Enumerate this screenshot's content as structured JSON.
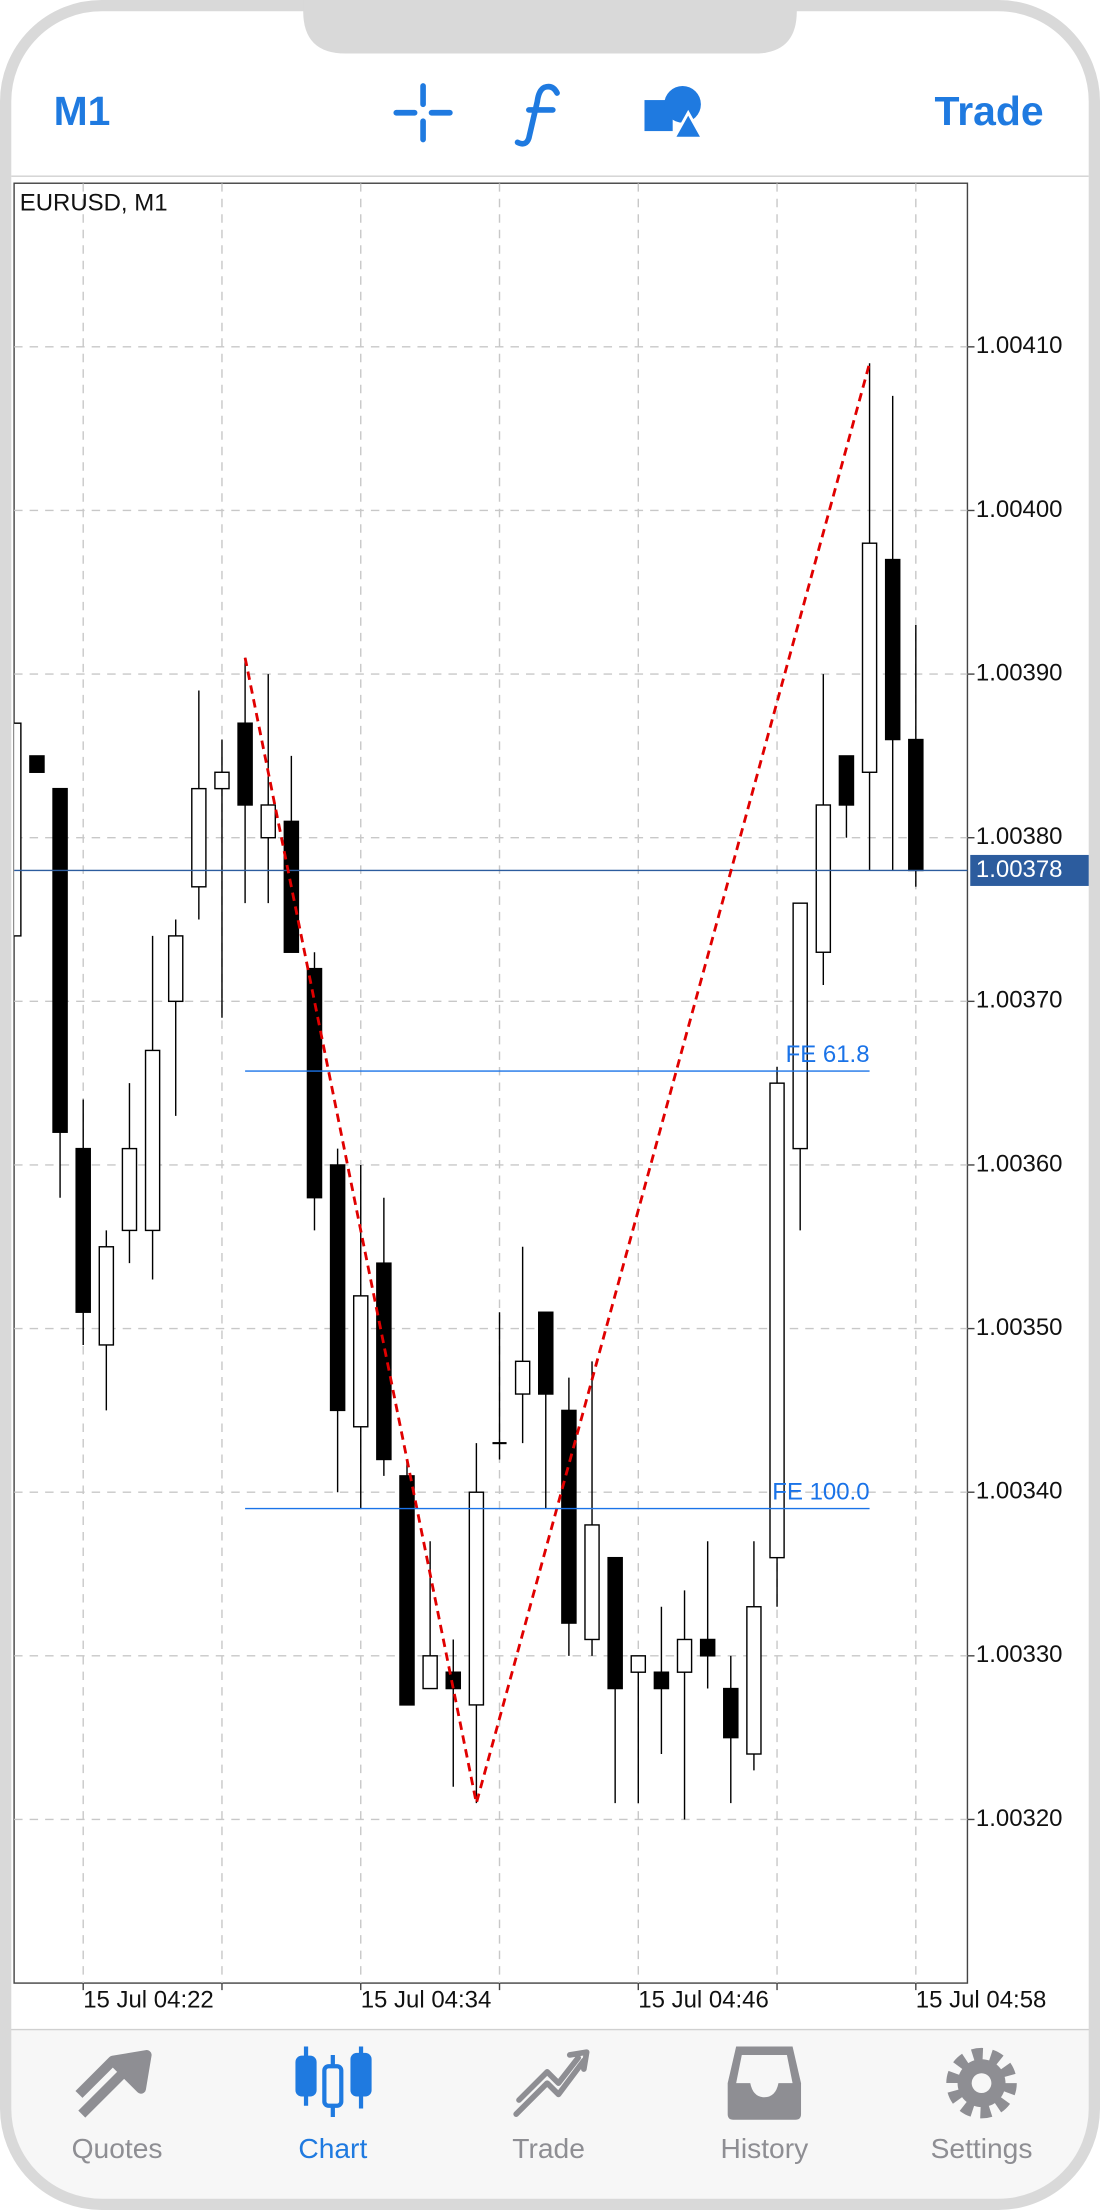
{
  "toolbar": {
    "timeframe": "M1",
    "trade": "Trade"
  },
  "tabs": [
    "Quotes",
    "Chart",
    "Trade",
    "History",
    "Settings"
  ],
  "chart_data": {
    "type": "candlestick",
    "title": "EURUSD, M1",
    "categories": [
      null,
      null,
      null,
      "15 Jul 04:22",
      null,
      null,
      null,
      null,
      null,
      null,
      null,
      null,
      null,
      null,
      null,
      "15 Jul 04:34",
      null,
      null,
      null,
      null,
      null,
      null,
      null,
      null,
      null,
      null,
      null,
      "15 Jul 04:46",
      null,
      null,
      null,
      null,
      null,
      null,
      null,
      null,
      null,
      null,
      null,
      "15 Jul 04:58"
    ],
    "open": [
      1.00374,
      1.00385,
      1.00383,
      1.00361,
      1.00349,
      1.00356,
      1.00356,
      1.0037,
      1.00377,
      1.00383,
      1.00387,
      1.0038,
      1.00381,
      1.00372,
      1.0036,
      1.00344,
      1.00354,
      1.00341,
      1.00328,
      1.00329,
      1.00327,
      1.00343,
      1.00346,
      1.00351,
      1.00345,
      1.00331,
      1.00336,
      1.00329,
      1.00329,
      1.00329,
      1.00331,
      1.00328,
      1.00324,
      1.00336,
      1.00361,
      1.00373,
      1.00385,
      1.00384,
      1.00397,
      1.00386
    ],
    "high": [
      1.00387,
      1.00385,
      1.00383,
      1.00364,
      1.00356,
      1.00365,
      1.00374,
      1.00375,
      1.00389,
      1.00386,
      1.00391,
      1.0039,
      1.00385,
      1.00373,
      1.00361,
      1.0036,
      1.00358,
      1.00342,
      1.00337,
      1.00331,
      1.00343,
      1.00351,
      1.00355,
      1.00351,
      1.00347,
      1.00348,
      1.00336,
      1.0033,
      1.00333,
      1.00334,
      1.00337,
      1.0033,
      1.00337,
      1.00366,
      1.00376,
      1.0039,
      1.00385,
      1.00409,
      1.00407,
      1.00393
    ],
    "low": [
      1.00374,
      1.00384,
      1.00358,
      1.00349,
      1.00345,
      1.00354,
      1.00353,
      1.00363,
      1.00375,
      1.00369,
      1.00376,
      1.00376,
      1.00373,
      1.00356,
      1.0034,
      1.00339,
      1.00341,
      1.00327,
      1.00328,
      1.00322,
      1.00321,
      1.00342,
      1.00343,
      1.00339,
      1.0033,
      1.0033,
      1.00321,
      1.00321,
      1.00324,
      1.0032,
      1.00328,
      1.00321,
      1.00323,
      1.00333,
      1.00356,
      1.00371,
      1.0038,
      1.00378,
      1.00378,
      1.00377
    ],
    "close": [
      1.00387,
      1.00384,
      1.00362,
      1.00351,
      1.00355,
      1.00361,
      1.00367,
      1.00374,
      1.00383,
      1.00384,
      1.00382,
      1.00382,
      1.00373,
      1.00358,
      1.00345,
      1.00352,
      1.00342,
      1.00327,
      1.0033,
      1.00328,
      1.0034,
      1.00343,
      1.00348,
      1.00346,
      1.00332,
      1.00338,
      1.00328,
      1.0033,
      1.00328,
      1.00331,
      1.0033,
      1.00325,
      1.00333,
      1.00365,
      1.00376,
      1.00382,
      1.00382,
      1.00398,
      1.00386,
      1.00378
    ],
    "up_color": "#ffffff",
    "down_color": "#000000",
    "wick_color": "#000000",
    "ylim": [
      1.0031,
      1.0042
    ],
    "yticks": [
      {
        "value": 1.0032,
        "label": "1.00320"
      },
      {
        "value": 1.0033,
        "label": "1.00330"
      },
      {
        "value": 1.0034,
        "label": "1.00340"
      },
      {
        "value": 1.0035,
        "label": "1.00350"
      },
      {
        "value": 1.0036,
        "label": "1.00360"
      },
      {
        "value": 1.0037,
        "label": "1.00370"
      },
      {
        "value": 1.0038,
        "label": "1.00380"
      },
      {
        "value": 1.0039,
        "label": "1.00390"
      },
      {
        "value": 1.004,
        "label": "1.00400"
      },
      {
        "value": 1.0041,
        "label": "1.00410"
      }
    ],
    "grid": true,
    "last_price": {
      "value": 1.00378,
      "label": "1.00378",
      "color": "#2c5c9e"
    },
    "fibo_expansion": {
      "color": "#e00000",
      "level_color": "#1a73e8",
      "anchors": [
        {
          "at": 10,
          "price": 1.00391
        },
        {
          "at": 20,
          "price": 1.00321
        },
        {
          "at": 37,
          "price": 1.00409
        }
      ],
      "levels": [
        {
          "value": 61.8,
          "label": "FE 61.8"
        },
        {
          "value": 100.0,
          "label": "FE 100.0"
        }
      ]
    }
  }
}
